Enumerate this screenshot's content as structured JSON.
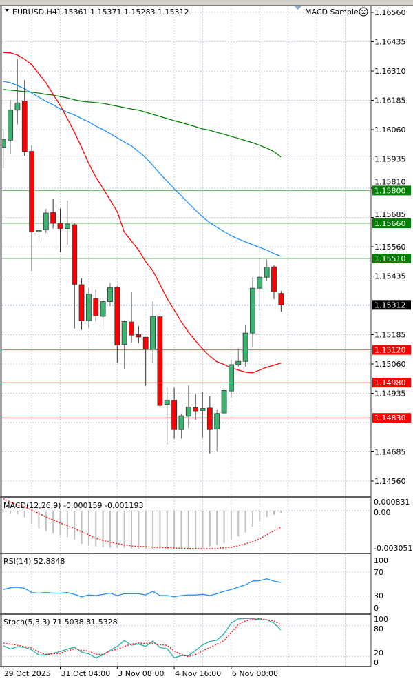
{
  "header": {
    "symbol": "EURUSD,H4",
    "ohlc": "1.15361 1.15371 1.15283 1.15312",
    "expert": "MACD Sample",
    "expert_icon": "sad-face-icon",
    "menu_icon": "triangle-down-icon"
  },
  "colors": {
    "bull": "#3cb371",
    "bear": "#ff0000",
    "ma_fast": "#ff0000",
    "ma_mid": "#1e90ff",
    "ma_slow": "#008000",
    "support_line": "#ff5050",
    "resistance_line": "#5cb85c",
    "grid": "#c8d0e0",
    "macd_hist": "#c0c0c0",
    "macd_signal": "#ff0000",
    "rsi": "#1e90ff",
    "stoch_main": "#20b2aa",
    "stoch_signal": "#ff0000"
  },
  "price_axis": {
    "ticks": [
      "1.16560",
      "1.16435",
      "1.16310",
      "1.16185",
      "1.16060",
      "1.15935",
      "1.15810",
      "1.15685",
      "1.15560",
      "1.15435",
      "1.15185",
      "1.15060",
      "1.14935",
      "1.14685",
      "1.14560"
    ],
    "current_price": "1.15312",
    "levels": [
      {
        "price": "1.15800",
        "kind": "resistance"
      },
      {
        "price": "1.15660",
        "kind": "resistance"
      },
      {
        "price": "1.15510",
        "kind": "resistance"
      },
      {
        "price": "1.15120",
        "kind": "support"
      },
      {
        "price": "1.14980",
        "kind": "support"
      },
      {
        "price": "1.14830",
        "kind": "support"
      }
    ]
  },
  "time_axis": [
    {
      "label": "29 Oct 2025",
      "candle": 0
    },
    {
      "label": "31 Oct 04:00",
      "candle": 8
    },
    {
      "label": "3 Nov 08:00",
      "candle": 16
    },
    {
      "label": "4 Nov 16:00",
      "candle": 24
    },
    {
      "label": "6 Nov 00:00",
      "candle": 32
    }
  ],
  "candles": [
    [
      1.15984,
      1.16063,
      1.15895,
      1.16017
    ],
    [
      1.16015,
      1.16187,
      1.15954,
      1.16143
    ],
    [
      1.16143,
      1.16363,
      1.16082,
      1.16174
    ],
    [
      1.16182,
      1.16272,
      1.15948,
      1.15966
    ],
    [
      1.15967,
      1.15993,
      1.15458,
      1.15623
    ],
    [
      1.15623,
      1.15704,
      1.15582,
      1.1563
    ],
    [
      1.15633,
      1.15722,
      1.15619,
      1.15704
    ],
    [
      1.15707,
      1.15766,
      1.15638,
      1.1566
    ],
    [
      1.1566,
      1.15723,
      1.15537,
      1.15638
    ],
    [
      1.15638,
      1.15757,
      1.15569,
      1.15657
    ],
    [
      1.15654,
      1.1566,
      1.15211,
      1.154
    ],
    [
      1.15398,
      1.15425,
      1.15205,
      1.15244
    ],
    [
      1.15245,
      1.15384,
      1.15214,
      1.15358
    ],
    [
      1.1534,
      1.15376,
      1.15241,
      1.15266
    ],
    [
      1.15263,
      1.15334,
      1.15206,
      1.15326
    ],
    [
      1.15326,
      1.15406,
      1.15307,
      1.15386
    ],
    [
      1.15388,
      1.15392,
      1.15064,
      1.15141
    ],
    [
      1.15143,
      1.15245,
      1.15037,
      1.15241
    ],
    [
      1.15239,
      1.15366,
      1.15152,
      1.15183
    ],
    [
      1.15185,
      1.15222,
      1.15149,
      1.15175
    ],
    [
      1.15174,
      1.15174,
      1.14967,
      1.15123
    ],
    [
      1.15123,
      1.15327,
      1.15063,
      1.15263
    ],
    [
      1.15261,
      1.15277,
      1.14876,
      1.14883
    ],
    [
      1.14888,
      1.14959,
      1.14717,
      1.14905
    ],
    [
      1.14905,
      1.14959,
      1.14741,
      1.1478
    ],
    [
      1.1478,
      1.14849,
      1.14741,
      1.14839
    ],
    [
      1.14837,
      1.14969,
      1.14785,
      1.14876
    ],
    [
      1.14875,
      1.14932,
      1.14821,
      1.14857
    ],
    [
      1.1486,
      1.14942,
      1.14746,
      1.1487
    ],
    [
      1.14872,
      1.14922,
      1.14678,
      1.1478
    ],
    [
      1.14782,
      1.14864,
      1.14687,
      1.14849
    ],
    [
      1.14851,
      1.14959,
      1.14851,
      1.14947
    ],
    [
      1.14945,
      1.15077,
      1.14917,
      1.15057
    ],
    [
      1.15057,
      1.15126,
      1.15048,
      1.15071
    ],
    [
      1.15071,
      1.15226,
      1.15048,
      1.15192
    ],
    [
      1.15192,
      1.15429,
      1.15131,
      1.15383
    ],
    [
      1.15383,
      1.1551,
      1.15288,
      1.1543
    ],
    [
      1.1543,
      1.15505,
      1.15413,
      1.15473
    ],
    [
      1.15474,
      1.15481,
      1.15337,
      1.15368
    ],
    [
      1.15361,
      1.15371,
      1.15283,
      1.15312
    ]
  ],
  "ma_fast": [
    1.16389,
    1.16387,
    1.16378,
    1.1636,
    1.16337,
    1.16298,
    1.1626,
    1.1621,
    1.16163,
    1.16107,
    1.16048,
    1.15984,
    1.15916,
    1.15857,
    1.1581,
    1.1576,
    1.1571,
    1.15622,
    1.15584,
    1.15546,
    1.15496,
    1.15458,
    1.15399,
    1.1534,
    1.1529,
    1.1524,
    1.15196,
    1.15158,
    1.15123,
    1.15093,
    1.15069,
    1.15058,
    1.15043,
    1.15034,
    1.15025,
    1.15022,
    1.15034,
    1.15046,
    1.15055,
    1.15064
  ],
  "ma_mid": [
    1.16266,
    1.1626,
    1.16248,
    1.16234,
    1.16216,
    1.16198,
    1.16181,
    1.16166,
    1.16148,
    1.16134,
    1.16122,
    1.16107,
    1.16093,
    1.16075,
    1.1606,
    1.16043,
    1.16025,
    1.16007,
    1.1599,
    1.15966,
    1.1594,
    1.15907,
    1.15872,
    1.1584,
    1.15807,
    1.15778,
    1.15746,
    1.15716,
    1.15687,
    1.15663,
    1.15643,
    1.15625,
    1.15607,
    1.15593,
    1.15581,
    1.15569,
    1.15557,
    1.15546,
    1.15531,
    1.15519
  ],
  "ma_slow": [
    1.16231,
    1.16228,
    1.16225,
    1.16222,
    1.16219,
    1.16216,
    1.1621,
    1.16207,
    1.16201,
    1.16195,
    1.16187,
    1.16181,
    1.16178,
    1.16175,
    1.16172,
    1.16166,
    1.1616,
    1.16154,
    1.16148,
    1.16143,
    1.16134,
    1.16125,
    1.16116,
    1.16107,
    1.16098,
    1.1609,
    1.16081,
    1.16072,
    1.16063,
    1.16057,
    1.16048,
    1.1604,
    1.16031,
    1.16022,
    1.16013,
    1.16004,
    1.15993,
    1.15981,
    1.15966,
    1.15943
  ],
  "macd": {
    "label": "MACD(12,26,9) -0.000159 -0.001193",
    "axis_top": "0.000831",
    "axis_zero": "0.00",
    "axis_bottom": "-0.003051",
    "hist": [
      -0.0001,
      -0.0002,
      -0.00025,
      -0.00049,
      -0.00096,
      -0.0013,
      -0.0015,
      -0.00166,
      -0.0018,
      -0.00193,
      -0.00213,
      -0.00242,
      -0.00255,
      -0.0026,
      -0.00267,
      -0.0027,
      -0.0027,
      -0.00272,
      -0.00275,
      -0.00277,
      -0.00277,
      -0.00277,
      -0.00278,
      -0.0028,
      -0.0028,
      -0.0028,
      -0.0028,
      -0.00275,
      -0.0027,
      -0.0026,
      -0.0025,
      -0.00238,
      -0.00213,
      -0.00188,
      -0.0016,
      -0.00116,
      -0.00079,
      -0.00045,
      -0.00029,
      -0.000159
    ],
    "signal": [
      0.00089,
      0.00064,
      0.00044,
      0.00027,
      5e-05,
      -0.0002,
      -0.00045,
      -0.00067,
      -0.0009,
      -0.0011,
      -0.00131,
      -0.00153,
      -0.00176,
      -0.00202,
      -0.00218,
      -0.0023,
      -0.0024,
      -0.0025,
      -0.00257,
      -0.0026,
      -0.00263,
      -0.00266,
      -0.00268,
      -0.0027,
      -0.00272,
      -0.00274,
      -0.00275,
      -0.00276,
      -0.00277,
      -0.00277,
      -0.00275,
      -0.0027,
      -0.00267,
      -0.00255,
      -0.00242,
      -0.00225,
      -0.00205,
      -0.00176,
      -0.00146,
      -0.001193
    ]
  },
  "rsi": {
    "label": "RSI(14) 52.8848",
    "axis": [
      "100",
      "70",
      "30",
      "0"
    ],
    "values": [
      41,
      44,
      45,
      43,
      36,
      35,
      36,
      35,
      35,
      36,
      33,
      29,
      32,
      31,
      33,
      35,
      31,
      34,
      34,
      34,
      32,
      38,
      31,
      31,
      29,
      31,
      32,
      32,
      33,
      31,
      34,
      38,
      41,
      45,
      49,
      55,
      56,
      59,
      55,
      52.8848
    ]
  },
  "stoch": {
    "label": "Stoch(5,3,3) 71.5038 81.5328",
    "axis": [
      "100",
      "80",
      "20",
      "0"
    ],
    "main": [
      41,
      34.5,
      39,
      37.7,
      32.6,
      22.3,
      23,
      25.9,
      29.5,
      34,
      37.8,
      28.3,
      24.7,
      16.9,
      22.8,
      31.8,
      39.5,
      50.9,
      41.8,
      44,
      39.5,
      50,
      37.3,
      35,
      16.9,
      21.4,
      21.4,
      31.8,
      42.7,
      49.1,
      51.8,
      64.5,
      85,
      93.6,
      94,
      94,
      91.8,
      91.8,
      85,
      71.5038
    ],
    "signal": [
      46,
      44,
      41.8,
      39,
      36.4,
      28.3,
      23.8,
      24.7,
      26,
      30.5,
      35,
      31.8,
      30.5,
      23.8,
      23.8,
      30.5,
      33.6,
      39.5,
      44,
      46,
      45.2,
      46,
      42.4,
      41.8,
      30.5,
      23.8,
      19.3,
      23.8,
      30.5,
      37.3,
      44,
      50.9,
      66.8,
      82.7,
      89.5,
      92.6,
      94,
      91.8,
      89.5,
      81.5328
    ]
  }
}
